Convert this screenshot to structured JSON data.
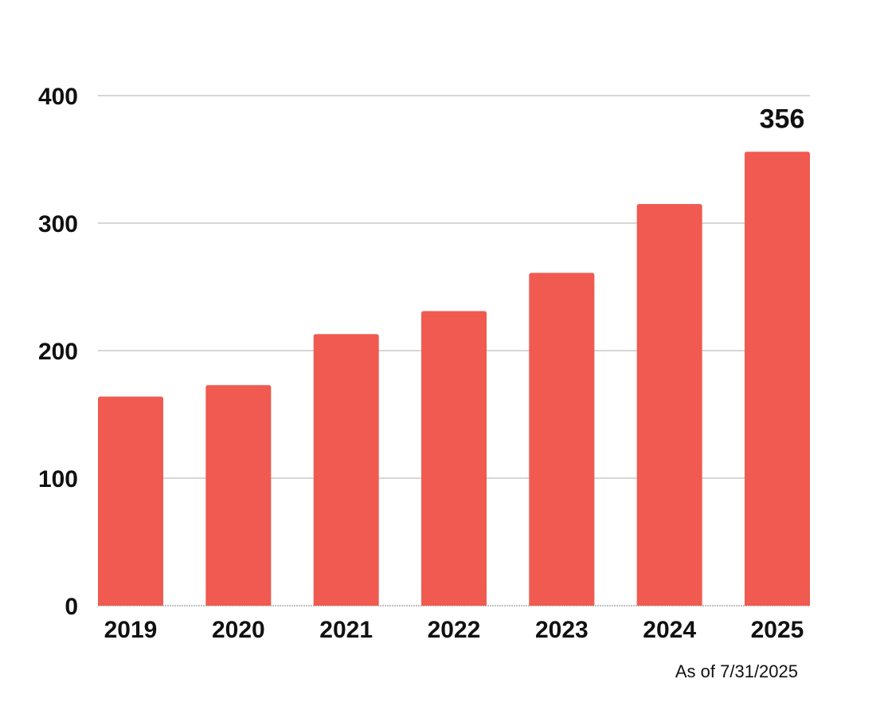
{
  "chart_data": {
    "type": "bar",
    "categories": [
      "2019",
      "2020",
      "2021",
      "2022",
      "2023",
      "2024",
      "2025"
    ],
    "values": [
      164,
      173,
      213,
      231,
      261,
      315,
      356
    ],
    "ylim": [
      0,
      400
    ],
    "yticks": [
      0,
      100,
      200,
      300,
      400
    ],
    "grid": true,
    "bar_color": "#F05A50",
    "grid_color": "#C8C8C8",
    "data_labels": [
      {
        "category": "2025",
        "text": "356"
      }
    ],
    "note": "As of 7/31/2025"
  }
}
